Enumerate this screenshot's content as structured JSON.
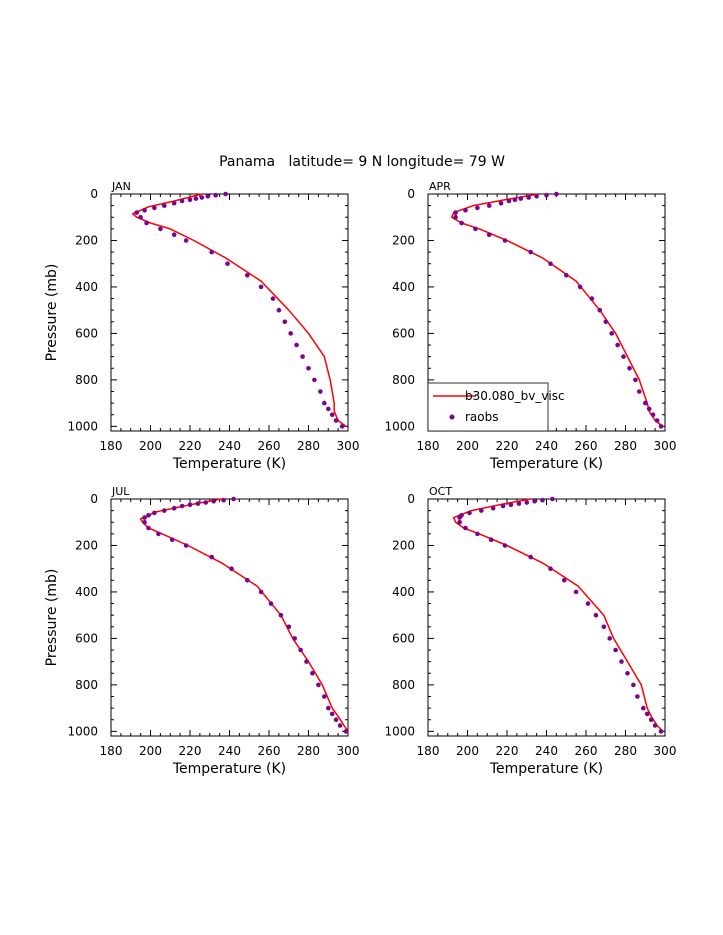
{
  "figure": {
    "title": "Panama   latitude= 9 N longitude= 79 W"
  },
  "colors": {
    "model_line": "#ff0000",
    "obs_marker": "#80008f",
    "axis": "#000000"
  },
  "chart_data": [
    {
      "type": "line",
      "panel_label": "JAN",
      "xlabel": "Temperature (K)",
      "ylabel": "Pressure (mb)",
      "xlim": [
        180,
        300
      ],
      "ylim": [
        0,
        1020
      ],
      "y_inverted": true,
      "xticks": [
        180,
        200,
        220,
        240,
        260,
        280,
        300
      ],
      "yticks": [
        0,
        200,
        400,
        600,
        800,
        1000
      ],
      "legend": null,
      "series": [
        {
          "name": "b30.080_bv_visc",
          "style": "line",
          "x": [
            226,
            212,
            199,
            191,
            193,
            200,
            210,
            222,
            238,
            256,
            270,
            280,
            288,
            291,
            293,
            293,
            295,
            299
          ],
          "y": [
            0,
            30,
            55,
            85,
            100,
            125,
            150,
            200,
            275,
            375,
            500,
            600,
            700,
            800,
            900,
            935,
            975,
            1000
          ]
        },
        {
          "name": "raobs",
          "style": "marker",
          "x": [
            238,
            233,
            229,
            226,
            223,
            220,
            216,
            212,
            207,
            202,
            197,
            193,
            195,
            198,
            205,
            212,
            218,
            231,
            239,
            249,
            256,
            262,
            265,
            268,
            271,
            274,
            277,
            280,
            283,
            286,
            288,
            290,
            292,
            294,
            297
          ],
          "y": [
            0,
            5,
            10,
            15,
            20,
            25,
            30,
            40,
            50,
            60,
            70,
            80,
            100,
            125,
            150,
            175,
            200,
            250,
            300,
            350,
            400,
            450,
            500,
            550,
            600,
            650,
            700,
            750,
            800,
            850,
            900,
            925,
            950,
            975,
            1000
          ]
        }
      ]
    },
    {
      "type": "line",
      "panel_label": "APR",
      "xlabel": "Temperature (K)",
      "ylabel": "",
      "xlim": [
        180,
        300
      ],
      "ylim": [
        0,
        1020
      ],
      "y_inverted": true,
      "xticks": [
        180,
        200,
        220,
        240,
        260,
        280,
        300
      ],
      "yticks": [
        0,
        200,
        400,
        600,
        800,
        1000
      ],
      "legend": {
        "placement": "bottom-left",
        "entries": [
          "b30.080_bv_visc",
          "raobs"
        ]
      },
      "series": [
        {
          "name": "b30.080_bv_visc",
          "style": "line",
          "x": [
            236,
            219,
            203,
            193,
            192,
            197,
            206,
            220,
            238,
            255,
            267,
            275,
            281,
            287,
            291,
            292,
            295,
            299
          ],
          "y": [
            0,
            25,
            50,
            80,
            100,
            125,
            150,
            200,
            275,
            375,
            500,
            600,
            700,
            800,
            900,
            935,
            975,
            1000
          ]
        },
        {
          "name": "raobs",
          "style": "marker",
          "x": [
            245,
            240,
            235,
            231,
            227,
            224,
            221,
            217,
            211,
            205,
            199,
            194,
            194,
            197,
            204,
            211,
            219,
            232,
            242,
            250,
            257,
            263,
            267,
            270,
            273,
            276,
            279,
            282,
            285,
            287,
            290,
            292,
            294,
            296,
            298
          ],
          "y": [
            0,
            5,
            10,
            15,
            20,
            25,
            30,
            40,
            50,
            60,
            70,
            80,
            100,
            125,
            150,
            175,
            200,
            250,
            300,
            350,
            400,
            450,
            500,
            550,
            600,
            650,
            700,
            750,
            800,
            850,
            900,
            925,
            950,
            975,
            1000
          ]
        }
      ]
    },
    {
      "type": "line",
      "panel_label": "JUL",
      "xlabel": "Temperature (K)",
      "ylabel": "Pressure (mb)",
      "xlim": [
        180,
        300
      ],
      "ylim": [
        0,
        1020
      ],
      "y_inverted": true,
      "xticks": [
        180,
        200,
        220,
        240,
        260,
        280,
        300
      ],
      "yticks": [
        0,
        200,
        400,
        600,
        800,
        1000
      ],
      "legend": null,
      "series": [
        {
          "name": "b30.080_bv_visc",
          "style": "line",
          "x": [
            236,
            220,
            203,
            195,
            196,
            199,
            206,
            219,
            236,
            254,
            266,
            272,
            280,
            287,
            292,
            295,
            298,
            300
          ],
          "y": [
            0,
            25,
            55,
            85,
            100,
            125,
            150,
            200,
            275,
            375,
            500,
            600,
            700,
            800,
            900,
            935,
            975,
            1000
          ]
        },
        {
          "name": "raobs",
          "style": "marker",
          "x": [
            242,
            237,
            232,
            228,
            224,
            220,
            216,
            212,
            207,
            202,
            199,
            197,
            197,
            199,
            204,
            211,
            218,
            231,
            241,
            249,
            256,
            261,
            266,
            270,
            273,
            276,
            279,
            282,
            285,
            288,
            290,
            292,
            294,
            296,
            299
          ],
          "y": [
            0,
            5,
            10,
            15,
            20,
            25,
            30,
            40,
            50,
            60,
            70,
            80,
            100,
            125,
            150,
            175,
            200,
            250,
            300,
            350,
            400,
            450,
            500,
            550,
            600,
            650,
            700,
            750,
            800,
            850,
            900,
            925,
            950,
            975,
            1000
          ]
        }
      ]
    },
    {
      "type": "line",
      "panel_label": "OCT",
      "xlabel": "Temperature (K)",
      "ylabel": "",
      "xlim": [
        180,
        300
      ],
      "ylim": [
        0,
        1020
      ],
      "y_inverted": true,
      "xticks": [
        180,
        200,
        220,
        240,
        260,
        280,
        300
      ],
      "yticks": [
        0,
        200,
        400,
        600,
        800,
        1000
      ],
      "legend": null,
      "series": [
        {
          "name": "b30.080_bv_visc",
          "style": "line",
          "x": [
            232,
            216,
            202,
            193,
            194,
            198,
            206,
            220,
            238,
            256,
            269,
            274,
            281,
            288,
            291,
            293,
            296,
            299
          ],
          "y": [
            0,
            25,
            50,
            80,
            100,
            125,
            150,
            200,
            275,
            375,
            500,
            600,
            700,
            800,
            900,
            935,
            975,
            1000
          ]
        },
        {
          "name": "raobs",
          "style": "marker",
          "x": [
            243,
            238,
            234,
            230,
            226,
            222,
            218,
            213,
            207,
            201,
            197,
            196,
            196,
            199,
            205,
            212,
            219,
            232,
            242,
            249,
            255,
            261,
            265,
            269,
            272,
            275,
            278,
            281,
            284,
            286,
            289,
            291,
            293,
            295,
            298
          ],
          "y": [
            0,
            5,
            10,
            15,
            20,
            25,
            30,
            40,
            50,
            60,
            70,
            80,
            100,
            125,
            150,
            175,
            200,
            250,
            300,
            350,
            400,
            450,
            500,
            550,
            600,
            650,
            700,
            750,
            800,
            850,
            900,
            925,
            950,
            975,
            1000
          ]
        }
      ]
    }
  ]
}
